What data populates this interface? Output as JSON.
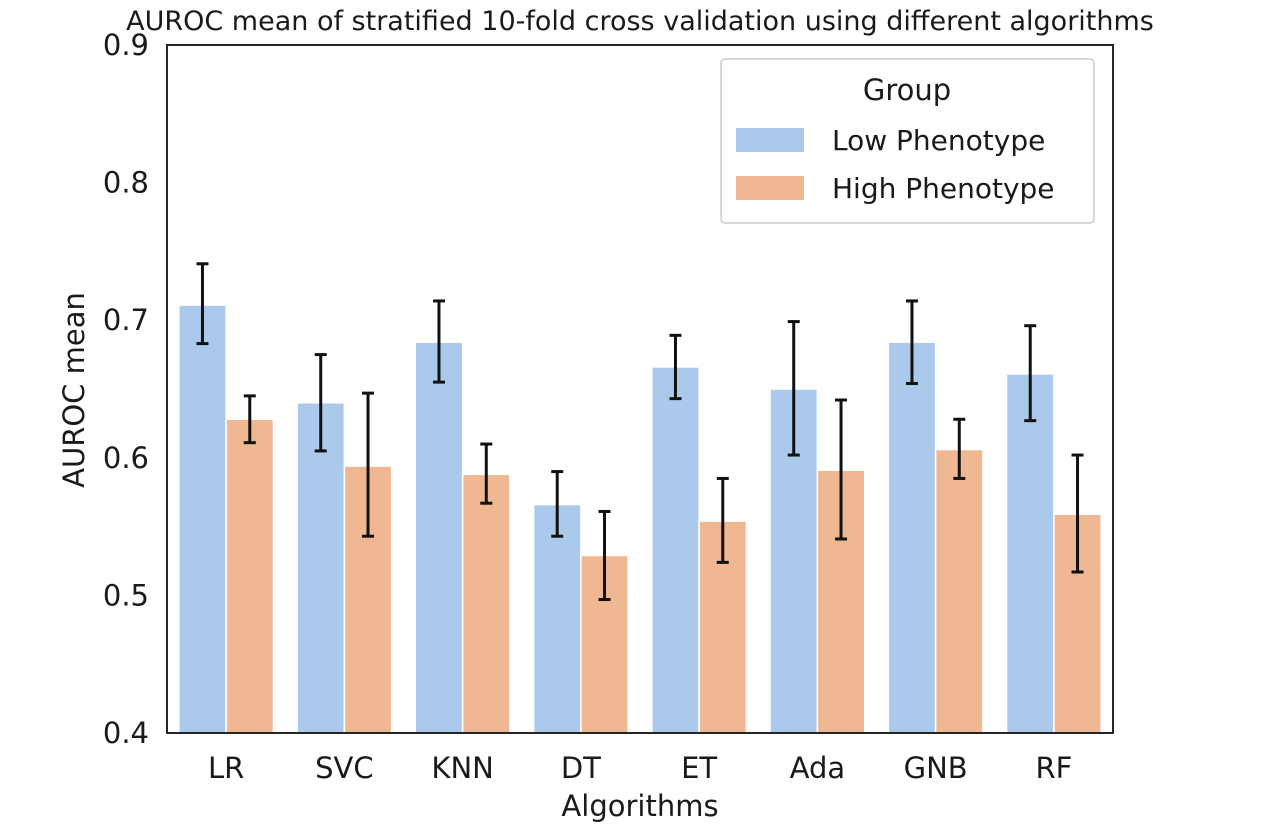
{
  "chart_data": {
    "type": "bar",
    "title": "AUROC mean of stratified 10-fold cross validation using different algorithms",
    "xlabel": "Algorithms",
    "ylabel": "AUROC mean",
    "ylim": [
      0.4,
      0.9
    ],
    "yticks": [
      "0.4",
      "0.5",
      "0.6",
      "0.7",
      "0.8",
      "0.9"
    ],
    "grid": false,
    "legend": {
      "title": "Group",
      "placement": "top-right"
    },
    "categories": [
      "LR",
      "SVC",
      "KNN",
      "DT",
      "ET",
      "Ada",
      "GNB",
      "RF"
    ],
    "series": [
      {
        "name": "Low Phenotype",
        "color": "#abc9ea",
        "values": [
          0.711,
          0.64,
          0.684,
          0.566,
          0.666,
          0.65,
          0.684,
          0.661
        ],
        "err_low": [
          0.683,
          0.605,
          0.655,
          0.543,
          0.643,
          0.602,
          0.654,
          0.627
        ],
        "err_high": [
          0.741,
          0.675,
          0.714,
          0.59,
          0.689,
          0.699,
          0.714,
          0.696
        ]
      },
      {
        "name": "High Phenotype",
        "color": "#efb792",
        "values": [
          0.628,
          0.594,
          0.588,
          0.529,
          0.554,
          0.591,
          0.606,
          0.559
        ],
        "err_low": [
          0.611,
          0.543,
          0.567,
          0.497,
          0.524,
          0.541,
          0.585,
          0.517
        ],
        "err_high": [
          0.645,
          0.647,
          0.61,
          0.561,
          0.585,
          0.642,
          0.628,
          0.602
        ]
      }
    ]
  }
}
